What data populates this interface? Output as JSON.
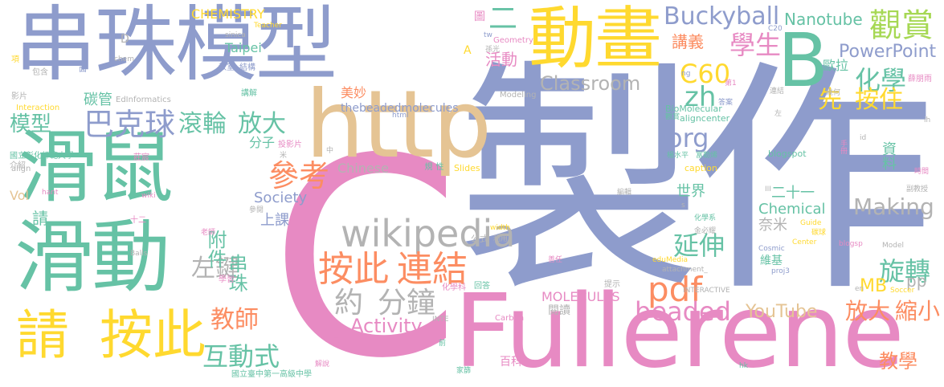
{
  "colors": {
    "blue": "#8e9ccc",
    "green": "#66c2a5",
    "orange": "#fc8d62",
    "pink": "#e78ac3",
    "yellow": "#ffd92f",
    "tan": "#e5c494",
    "gray": "#b3b3b3",
    "lime": "#a6d854"
  },
  "words": [
    {
      "text": "串珠模型",
      "c": "blue"
    },
    {
      "text": "製作",
      "c": "blue"
    },
    {
      "text": "C",
      "c": "pink"
    },
    {
      "text": "滑鼠",
      "c": "green"
    },
    {
      "text": "滑動",
      "c": "green"
    },
    {
      "text": "動畫",
      "c": "yellow"
    },
    {
      "text": "B",
      "c": "green"
    },
    {
      "text": "http",
      "c": "tan"
    },
    {
      "text": "Fullerene",
      "c": "pink"
    },
    {
      "text": "請",
      "c": "yellow"
    },
    {
      "text": "按此",
      "c": "yellow"
    },
    {
      "text": "wikipedia",
      "c": "gray"
    },
    {
      "text": "按此",
      "c": "orange"
    },
    {
      "text": "連結",
      "c": "orange"
    },
    {
      "text": "約",
      "c": "gray"
    },
    {
      "text": "分鐘",
      "c": "gray"
    },
    {
      "text": "巴克球",
      "c": "blue"
    },
    {
      "text": "滾輪",
      "c": "green"
    },
    {
      "text": "放大",
      "c": "green"
    },
    {
      "text": "Buckyball",
      "c": "blue"
    },
    {
      "text": "觀賞",
      "c": "lime"
    },
    {
      "text": "學生",
      "c": "pink"
    },
    {
      "text": "講義",
      "c": "orange"
    },
    {
      "text": "活動",
      "c": "pink"
    },
    {
      "text": "C60",
      "c": "yellow"
    },
    {
      "text": "zh",
      "c": "green"
    },
    {
      "text": "org",
      "c": "blue"
    },
    {
      "text": "Classroom",
      "c": "gray"
    },
    {
      "text": "化學",
      "c": "green"
    },
    {
      "text": "PowerPoint",
      "c": "blue"
    },
    {
      "text": "Nanotube",
      "c": "green"
    },
    {
      "text": "先",
      "c": "yellow"
    },
    {
      "text": "按住",
      "c": "yellow"
    },
    {
      "text": "延伸",
      "c": "green"
    },
    {
      "text": "參考",
      "c": "orange"
    },
    {
      "text": "pdf",
      "c": "orange"
    },
    {
      "text": "beaded",
      "c": "pink"
    },
    {
      "text": "旋轉",
      "c": "green"
    },
    {
      "text": "放大",
      "c": "orange"
    },
    {
      "text": "縮小",
      "c": "orange"
    },
    {
      "text": "Making",
      "c": "gray"
    },
    {
      "text": "Chemical",
      "c": "green"
    },
    {
      "text": "Society",
      "c": "blue"
    },
    {
      "text": "左鍵",
      "c": "gray"
    },
    {
      "text": "教師",
      "c": "orange"
    },
    {
      "text": "互動式",
      "c": "green"
    },
    {
      "text": "Activity",
      "c": "pink"
    },
    {
      "text": "MOLECULES",
      "c": "pink"
    },
    {
      "text": "YouTube",
      "c": "tan"
    },
    {
      "text": "MB",
      "c": "yellow"
    },
    {
      "text": "pp",
      "c": "gray"
    },
    {
      "text": "教學",
      "c": "orange"
    },
    {
      "text": "模型",
      "c": "green"
    },
    {
      "text": "串珠",
      "c": "green"
    },
    {
      "text": "附件",
      "c": "green"
    },
    {
      "text": "上課",
      "c": "blue"
    },
    {
      "text": "請",
      "c": "green"
    },
    {
      "text": "二",
      "c": "green"
    },
    {
      "text": "CHEMISTRY",
      "c": "yellow"
    },
    {
      "text": "Taipei",
      "c": "green"
    },
    {
      "text": "碳管",
      "c": "green"
    },
    {
      "text": "EdInformatics",
      "c": "gray"
    },
    {
      "text": "thebeadedmolecules",
      "c": "blue"
    },
    {
      "text": "美妙",
      "c": "orange"
    },
    {
      "text": "分子",
      "c": "green"
    },
    {
      "text": "Chinese",
      "c": "gray"
    },
    {
      "text": "資料",
      "c": "green"
    },
    {
      "text": "世界",
      "c": "green"
    },
    {
      "text": "二十一",
      "c": "green"
    },
    {
      "text": "奈米",
      "c": "gray"
    },
    {
      "text": "歐拉",
      "c": "green"
    },
    {
      "text": "Vol",
      "c": "tan"
    },
    {
      "text": "Slides",
      "c": "yellow"
    },
    {
      "text": "閱讀",
      "c": "gray"
    },
    {
      "text": "百科",
      "c": "pink"
    },
    {
      "text": "Carbon",
      "c": "pink"
    },
    {
      "text": "維基",
      "c": "green"
    },
    {
      "text": "BioMolecular",
      "c": "green"
    },
    {
      "text": "aligncenter",
      "c": "green"
    },
    {
      "text": "blogspot",
      "c": "green"
    },
    {
      "text": "caption",
      "c": "yellow"
    },
    {
      "text": "Geometry",
      "c": "pink"
    },
    {
      "text": "Modeling",
      "c": "gray"
    },
    {
      "text": "Interaction",
      "c": "yellow"
    },
    {
      "text": "國立彰化師範大學",
      "c": "green"
    },
    {
      "text": "國立臺中第一高級中學",
      "c": "green"
    },
    {
      "text": "sinica",
      "c": "gray"
    },
    {
      "text": "Teacher",
      "c": "yellow"
    },
    {
      "text": "tw",
      "c": "blue"
    },
    {
      "text": "A",
      "c": "yellow"
    },
    {
      "text": "D",
      "c": "gray"
    },
    {
      "text": "chem",
      "c": "gray"
    },
    {
      "text": "html",
      "c": "blue"
    },
    {
      "text": "C20",
      "c": "blue"
    },
    {
      "text": "id",
      "c": "gray"
    },
    {
      "text": "ih",
      "c": "gray"
    },
    {
      "text": "wiki",
      "c": "pink"
    },
    {
      "text": "hant",
      "c": "pink"
    },
    {
      "text": "Balls",
      "c": "gray"
    },
    {
      "text": "width",
      "c": "yellow"
    },
    {
      "text": "公式",
      "c": "gray"
    },
    {
      "text": "利用",
      "c": "gray"
    },
    {
      "text": "Guide",
      "c": "yellow"
    },
    {
      "text": "Center",
      "c": "yellow"
    },
    {
      "text": "blogsp",
      "c": "pink"
    },
    {
      "text": "Model",
      "c": "gray"
    },
    {
      "text": "Cosmic",
      "c": "blue"
    },
    {
      "text": "eduMedia",
      "c": "yellow"
    },
    {
      "text": "attachment_",
      "c": "gray"
    },
    {
      "text": "proj3",
      "c": "blue"
    },
    {
      "text": "INTERACTIVE",
      "c": "gray"
    },
    {
      "text": "INTE",
      "c": "gray"
    },
    {
      "text": "Soccer",
      "c": "yellow"
    },
    {
      "text": "en",
      "c": "gray"
    },
    {
      "text": "hk",
      "c": "green"
    },
    {
      "text": "ng",
      "c": "blue"
    },
    {
      "text": "圖",
      "c": "pink"
    },
    {
      "text": "孫光",
      "c": "gray"
    },
    {
      "text": "教室",
      "c": "blue"
    },
    {
      "text": "結構",
      "c": "blue"
    },
    {
      "text": "講解",
      "c": "green"
    },
    {
      "text": "包含",
      "c": "gray"
    },
    {
      "text": "面",
      "c": "blue"
    },
    {
      "text": "項",
      "c": "yellow"
    },
    {
      "text": "影片",
      "c": "gray"
    },
    {
      "text": "介紹",
      "c": "gray"
    },
    {
      "text": "投影片",
      "c": "pink"
    },
    {
      "text": "莊宸",
      "c": "pink"
    },
    {
      "text": "參閱",
      "c": "gray"
    },
    {
      "text": "十二",
      "c": "pink"
    },
    {
      "text": "老師",
      "c": "pink"
    },
    {
      "text": "學習",
      "c": "pink"
    },
    {
      "text": "規",
      "c": "green"
    },
    {
      "text": "性",
      "c": "green"
    },
    {
      "text": "中",
      "c": "gray"
    },
    {
      "text": "米",
      "c": "gray"
    },
    {
      "text": "示",
      "c": "pink"
    },
    {
      "text": "前",
      "c": "green"
    },
    {
      "text": "回答",
      "c": "green"
    },
    {
      "text": "化學科",
      "c": "pink"
    },
    {
      "text": "提示",
      "c": "gray"
    },
    {
      "text": "家篩",
      "c": "green"
    },
    {
      "text": "解說",
      "c": "pink"
    },
    {
      "text": "第1",
      "c": "pink"
    },
    {
      "text": "答案",
      "c": "blue"
    },
    {
      "text": "連結",
      "c": "gray"
    },
    {
      "text": "幾何",
      "c": "gray"
    },
    {
      "text": "薛朋雨",
      "c": "pink"
    },
    {
      "text": "時間",
      "c": "pink"
    },
    {
      "text": "副教授",
      "c": "gray"
    },
    {
      "text": "手冊",
      "c": "pink"
    },
    {
      "text": "楊水平",
      "c": "green"
    },
    {
      "text": "富勒烯",
      "c": "green"
    },
    {
      "text": "化學系",
      "c": "green"
    },
    {
      "text": "金必耀",
      "c": "gray"
    },
    {
      "text": "碳球",
      "c": "yellow"
    },
    {
      "text": "編輯",
      "c": "gray"
    },
    {
      "text": "善任",
      "c": "pink"
    },
    {
      "text": "左",
      "c": "gray"
    },
    {
      "text": "觀賞",
      "c": "green"
    },
    {
      "text": "align",
      "c": "gray"
    },
    {
      "text": "III",
      "c": "gray"
    },
    {
      "text": "s",
      "c": "gray"
    }
  ]
}
